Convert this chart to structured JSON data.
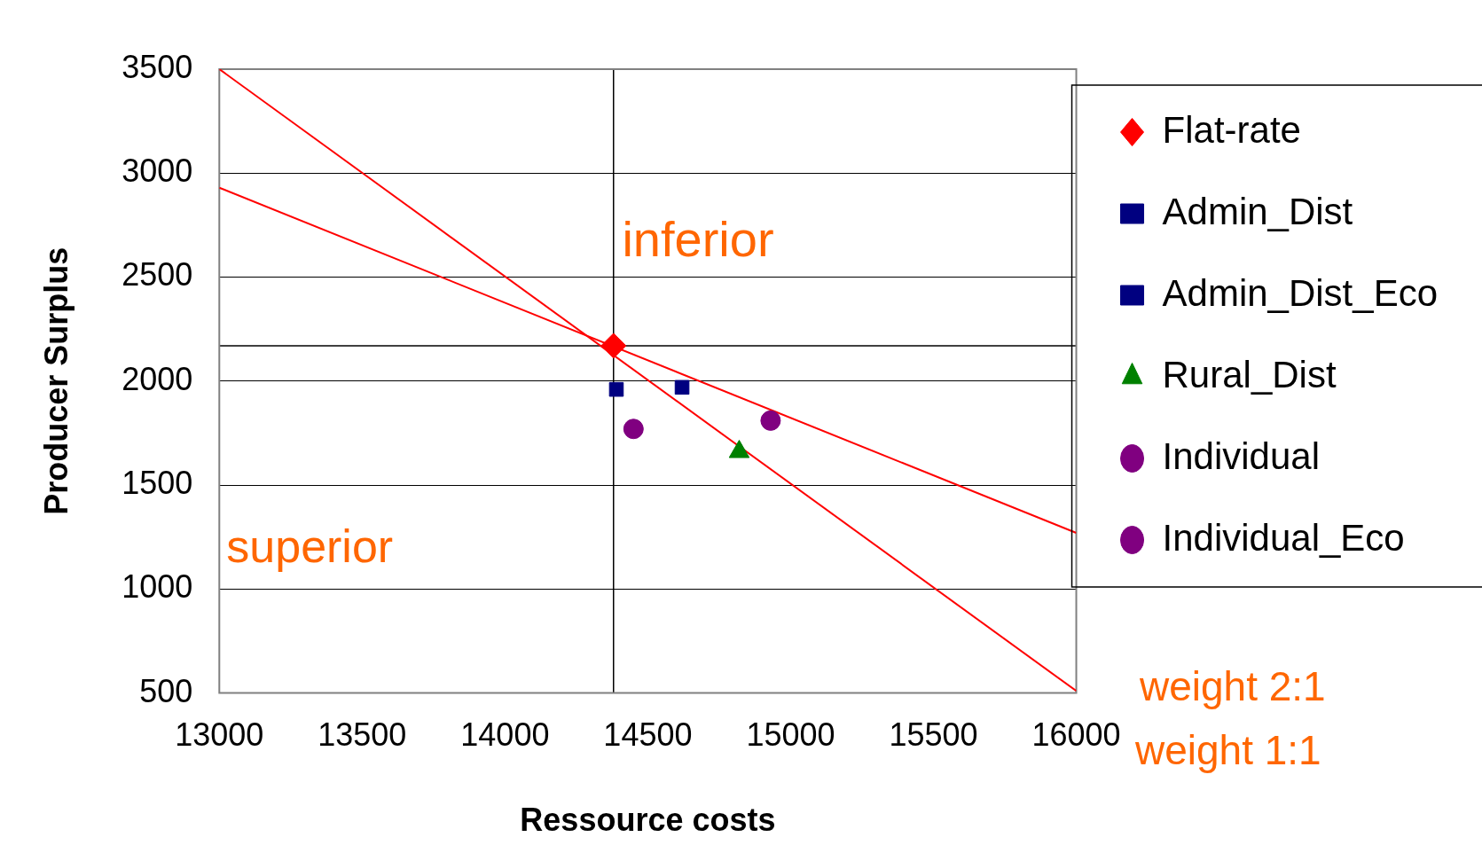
{
  "chart_data": {
    "type": "scatter",
    "xlabel": "Ressource costs",
    "ylabel": "Producer Surplus",
    "xlim": [
      13000,
      16000
    ],
    "xticks": [
      13000,
      13500,
      14000,
      14500,
      15000,
      15500,
      16000
    ],
    "ylim": [
      500,
      3500
    ],
    "yticks": [
      500,
      1000,
      1500,
      2000,
      2500,
      3000,
      3500
    ],
    "grid": "y",
    "legend": "top right",
    "series": [
      {
        "name": "Flat-rate",
        "color": "#ff0000",
        "marker": "diamond",
        "x": [
          14380
        ],
        "values": [
          2170
        ]
      },
      {
        "name": "Admin_Dist",
        "color": "#000080",
        "marker": "square",
        "x": [
          14620
        ],
        "values": [
          1970
        ]
      },
      {
        "name": "Admin_Dist_Eco",
        "color": "#000080",
        "marker": "square",
        "x": [
          14390
        ],
        "values": [
          1960
        ]
      },
      {
        "name": "Rural_Dist",
        "color": "#008000",
        "marker": "triangle",
        "x": [
          14820
        ],
        "values": [
          1660
        ]
      },
      {
        "name": "Individual",
        "color": "#800080",
        "marker": "circle",
        "x": [
          14930
        ],
        "values": [
          1810
        ]
      },
      {
        "name": "Individual_Eco",
        "color": "#800080",
        "marker": "circle",
        "x": [
          14450
        ],
        "values": [
          1770
        ]
      },
      {
        "type": "line",
        "color": "#ff0000",
        "marker": "none",
        "x": [
          13000,
          16000
        ],
        "values": [
          2930,
          1270
        ]
      },
      {
        "type": "line",
        "color": "#ff0000",
        "marker": "none",
        "x": [
          13000,
          16000
        ],
        "values": [
          3500,
          510
        ]
      }
    ],
    "ref_lines": [
      {
        "axis": "x",
        "value": 14380
      },
      {
        "axis": "y",
        "value": 2170
      }
    ],
    "annotations": [
      "inferior",
      "superior",
      "weight 2:1",
      "weight 1:1"
    ]
  }
}
